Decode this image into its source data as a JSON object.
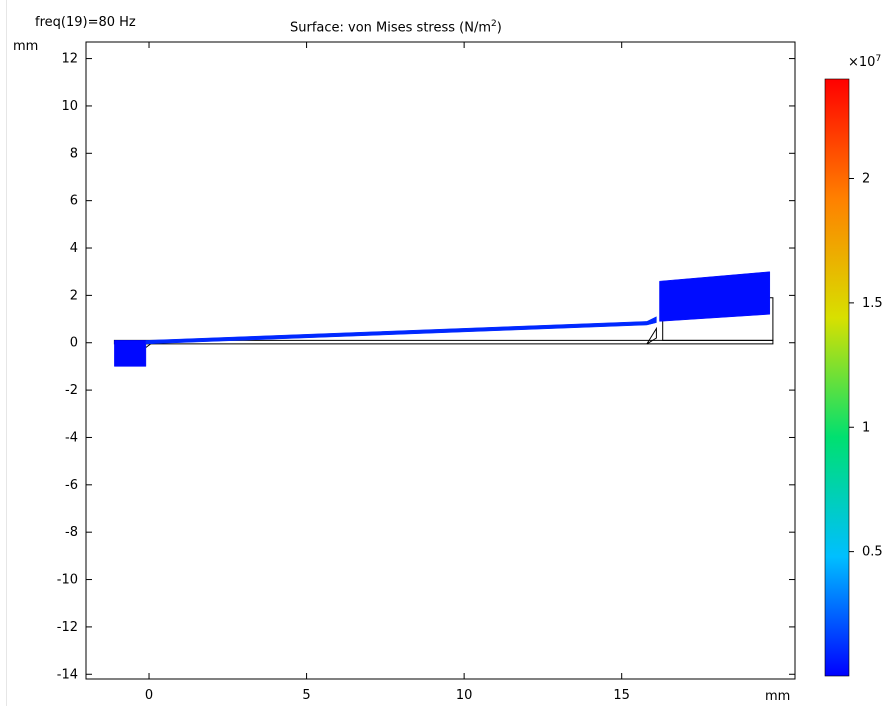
{
  "header": {
    "param_label": "freq(19)=80 Hz",
    "title_prefix": "Surface: von Mises stress (N/m",
    "title_sup": "2",
    "title_suffix": ")"
  },
  "chart_data": {
    "type": "surface",
    "title": "Surface: von Mises stress (N/m²)",
    "parameter": "freq(19)=80 Hz",
    "x_unit": "mm",
    "y_unit": "mm",
    "xlim": [
      -2,
      20.5
    ],
    "ylim": [
      -14.2,
      12.7
    ],
    "x_ticks": [
      0,
      5,
      10,
      15
    ],
    "x_tick_labels": [
      "0",
      "5",
      "10",
      "15"
    ],
    "y_ticks": [
      12,
      10,
      8,
      6,
      4,
      2,
      0,
      -2,
      -4,
      -6,
      -8,
      -10,
      -12,
      -14
    ],
    "y_tick_labels": [
      "12",
      "10",
      "8",
      "6",
      "4",
      "2",
      "0",
      "-2",
      "-4",
      "-6",
      "-8",
      "-10",
      "-12",
      "-14"
    ],
    "colorbar": {
      "multiplier": "×10",
      "exponent": "7",
      "min": 0,
      "max": 2.4,
      "ticks": [
        0.5,
        1,
        1.5,
        2
      ],
      "tick_labels": [
        "0.5",
        "1",
        "1.5",
        "2"
      ],
      "colormap": "rainbow"
    },
    "deformed_shape": [
      {
        "name": "left-block",
        "points": [
          [
            -1.1,
            0.1
          ],
          [
            -0.1,
            0.1
          ],
          [
            -0.1,
            -1.0
          ],
          [
            -1.1,
            -1.0
          ]
        ],
        "value": 0.02
      },
      {
        "name": "beam",
        "points": [
          [
            -0.1,
            0.1
          ],
          [
            15.8,
            0.9
          ],
          [
            16.1,
            1.1
          ],
          [
            16.1,
            0.85
          ],
          [
            15.8,
            0.75
          ],
          [
            -0.1,
            -0.05
          ]
        ],
        "value": 0.1
      },
      {
        "name": "right-mass",
        "points": [
          [
            16.2,
            2.6
          ],
          [
            19.7,
            3.0
          ],
          [
            19.7,
            1.2
          ],
          [
            16.2,
            0.9
          ]
        ],
        "value": 0.03
      }
    ],
    "undeformed_outline": [
      {
        "name": "beam-outline",
        "points": [
          [
            -1.1,
            0.1
          ],
          [
            19.8,
            0.1
          ],
          [
            19.8,
            -0.05
          ],
          [
            -1.1,
            -0.05
          ]
        ]
      },
      {
        "name": "mass-outline",
        "points": [
          [
            16.3,
            1.9
          ],
          [
            19.8,
            1.9
          ],
          [
            19.8,
            0.1
          ],
          [
            16.3,
            0.1
          ]
        ]
      },
      {
        "name": "left-step",
        "points": [
          [
            0.2,
            0.1
          ],
          [
            -0.1,
            -0.2
          ]
        ]
      },
      {
        "name": "right-step",
        "points": [
          [
            15.8,
            -0.05
          ],
          [
            16.1,
            0.2
          ],
          [
            16.1,
            0.6
          ]
        ]
      }
    ],
    "colors": {
      "low": "#0000ff",
      "high": "#ff0000",
      "outline": "#000000"
    }
  }
}
